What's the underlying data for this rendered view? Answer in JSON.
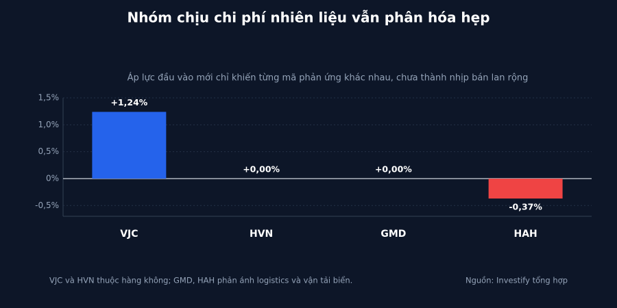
{
  "chart_data": {
    "type": "bar",
    "title": "Nhóm chịu chi phí nhiên liệu vẫn phân hóa hẹp",
    "subtitle": "Áp lực đầu vào mới chỉ khiến từng mã phản ứng khác nhau, chưa thành nhịp bán lan rộng",
    "categories": [
      "VJC",
      "HVN",
      "GMD",
      "HAH"
    ],
    "values": [
      1.24,
      0,
      0,
      -0.37
    ],
    "value_labels": [
      "+1,24%",
      "+0,00%",
      "+0,00%",
      "-0,37%"
    ],
    "positive_color": "#2563eb",
    "negative_color": "#ef4444",
    "ylim": [
      -0.7,
      1.5
    ],
    "yticks": [
      {
        "value": -0.5,
        "label": "-0,5%"
      },
      {
        "value": 0,
        "label": "0%"
      },
      {
        "value": 0.5,
        "label": "0,5%"
      },
      {
        "value": 1.0,
        "label": "1,0%"
      },
      {
        "value": 1.5,
        "label": "1,5%"
      }
    ],
    "grid": true,
    "note": "VJC và HVN thuộc hàng không; GMD, HAH phản ánh logistics và vận tải biển.",
    "source": "Nguồn: Investify tổng hợp"
  }
}
